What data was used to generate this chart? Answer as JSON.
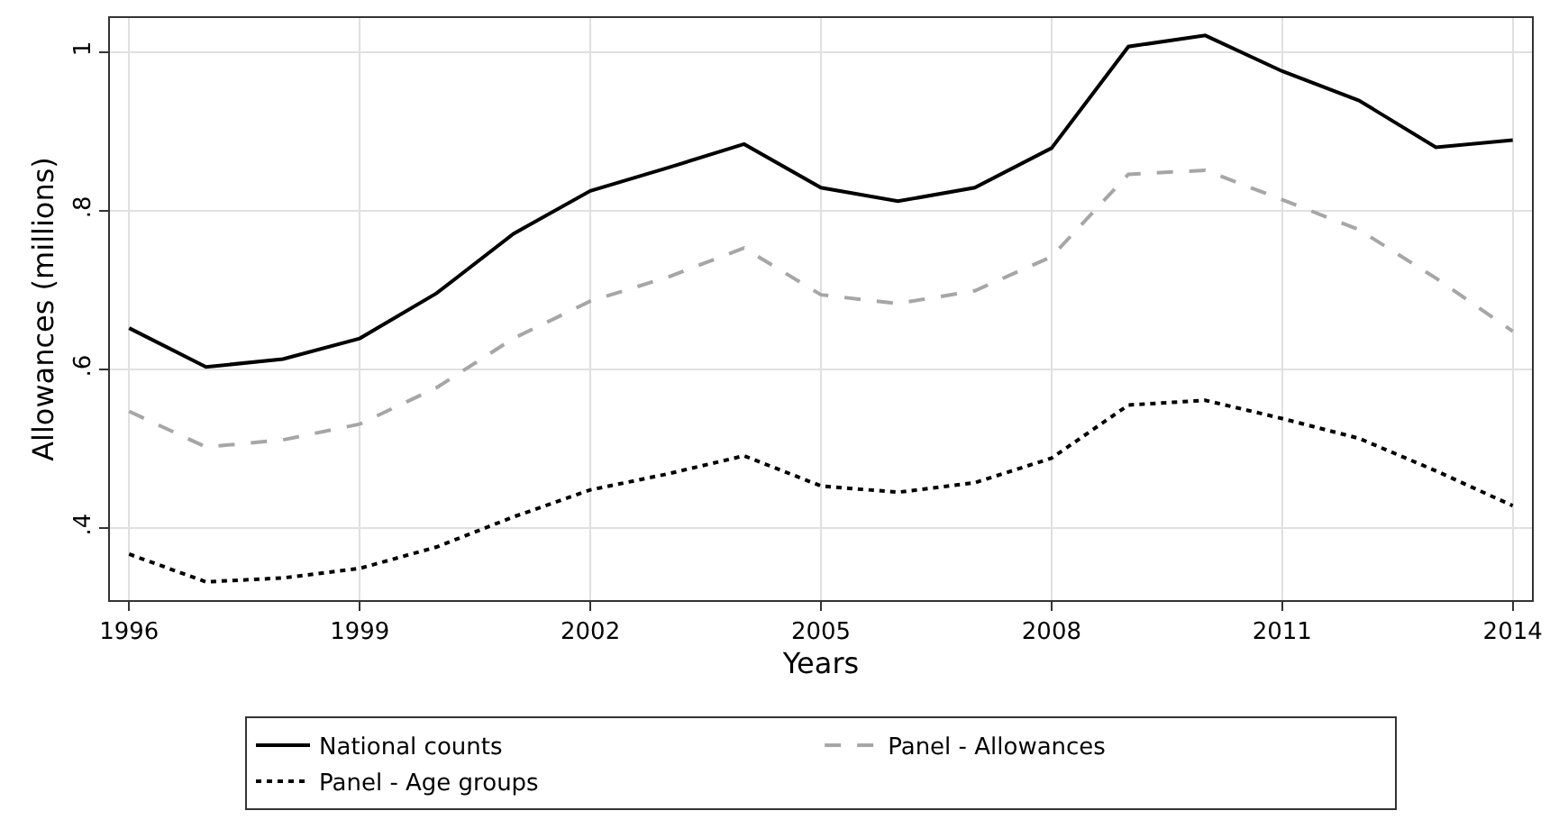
{
  "chart_data": {
    "type": "line",
    "xlabel": "Years",
    "ylabel": "Allowances (millions)",
    "x": [
      1996,
      1997,
      1998,
      1999,
      2000,
      2001,
      2002,
      2003,
      2004,
      2005,
      2006,
      2007,
      2008,
      2009,
      2010,
      2011,
      2012,
      2013,
      2014
    ],
    "series": [
      {
        "name": "National counts",
        "color": "#000000",
        "line_style": "solid",
        "values": [
          0.652,
          0.603,
          0.613,
          0.639,
          0.696,
          0.771,
          0.825,
          0.854,
          0.884,
          0.829,
          0.812,
          0.829,
          0.879,
          1.007,
          1.021,
          0.976,
          0.939,
          0.88,
          0.889
        ]
      },
      {
        "name": "Panel - Allowances",
        "color": "#a6a6a6",
        "line_style": "dashed",
        "values": [
          0.547,
          0.502,
          0.511,
          0.531,
          0.577,
          0.639,
          0.686,
          0.716,
          0.753,
          0.694,
          0.683,
          0.699,
          0.742,
          0.846,
          0.851,
          0.814,
          0.776,
          0.715,
          0.648
        ]
      },
      {
        "name": "Panel - Age groups",
        "color": "#000000",
        "line_style": "dotted",
        "values": [
          0.367,
          0.332,
          0.337,
          0.349,
          0.376,
          0.414,
          0.448,
          0.468,
          0.491,
          0.453,
          0.445,
          0.457,
          0.488,
          0.555,
          0.561,
          0.538,
          0.513,
          0.472,
          0.428
        ]
      }
    ],
    "xlim": [
      1995.75,
      2014.25
    ],
    "xticks": [
      1996,
      1999,
      2002,
      2005,
      2008,
      2011,
      2014
    ],
    "ylim": [
      0.309,
      1.043
    ],
    "yticks": [
      {
        "value": 0.4,
        "label": ".4"
      },
      {
        "value": 0.6,
        "label": ".6"
      },
      {
        "value": 0.8,
        "label": ".8"
      },
      {
        "value": 1,
        "label": "1"
      }
    ],
    "grid": true,
    "legend": "bottom",
    "marker": "none"
  }
}
